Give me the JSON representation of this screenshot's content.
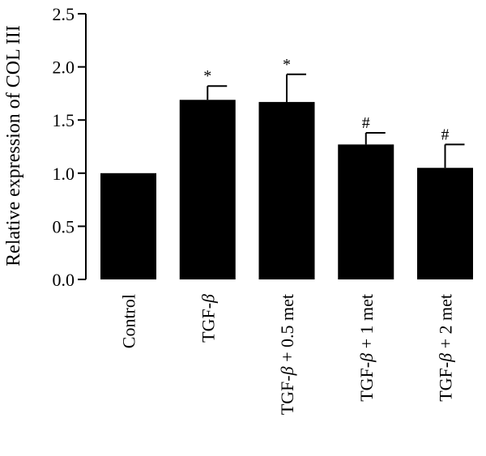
{
  "chart_data": {
    "type": "bar",
    "title": "",
    "xlabel": "",
    "ylabel": "Relative expression of COL III",
    "ylim": [
      0,
      2.5
    ],
    "yticks": [
      "0.0",
      "0.5",
      "1.0",
      "1.5",
      "2.0",
      "2.5"
    ],
    "grid": false,
    "legend": "none",
    "bar_color": "#000000",
    "categories": [
      {
        "pre": "Control",
        "greek": "",
        "post": ""
      },
      {
        "pre": "TGF-",
        "greek": "β",
        "post": ""
      },
      {
        "pre": "TGF-",
        "greek": "β",
        "post": " + 0.5 met"
      },
      {
        "pre": "TGF-",
        "greek": "β",
        "post": " + 1 met"
      },
      {
        "pre": "TGF-",
        "greek": "β",
        "post": " + 2 met"
      }
    ],
    "values": [
      1.0,
      1.69,
      1.67,
      1.27,
      1.05
    ],
    "error_upper": [
      0.0,
      0.13,
      0.26,
      0.11,
      0.22
    ],
    "annotations": [
      "",
      "*",
      "*",
      "#",
      "#"
    ]
  }
}
